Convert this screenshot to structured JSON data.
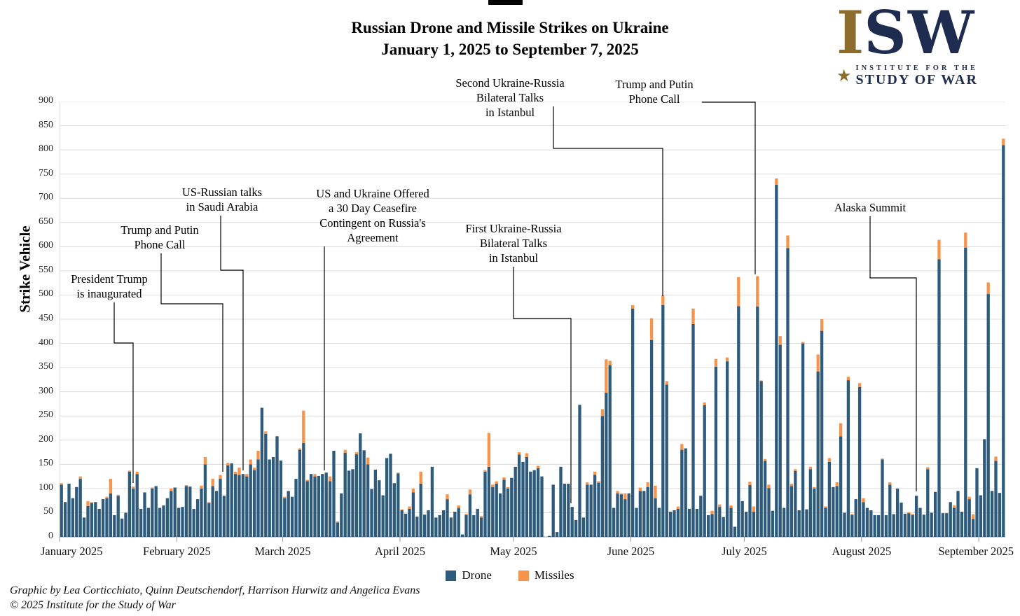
{
  "title": {
    "line1": "Russian Drone and Missile Strikes on Ukraine",
    "line2": "January 1, 2025 to September 7, 2025"
  },
  "logo": {
    "i": "I",
    "sw": "SW",
    "star": "★",
    "line1": "INSTITUTE FOR THE",
    "line2": "STUDY OF WAR"
  },
  "y_axis": {
    "title": "Strike Vehicle"
  },
  "x_axis": {
    "months": [
      "January 2025",
      "February 2025",
      "March 2025",
      "April 2025",
      "May 2025",
      "June 2025",
      "July 2025",
      "August 2025",
      "September 2025"
    ]
  },
  "legend": [
    {
      "label": "Drone",
      "color": "#2E5B7C"
    },
    {
      "label": "Missiles",
      "color": "#F6944C"
    }
  ],
  "annotations": [
    {
      "text": "President Trump\nis inaugurated"
    },
    {
      "text": "Trump and Putin\nPhone Call"
    },
    {
      "text": "US-Russian talks\nin Saudi Arabia"
    },
    {
      "text": "US and Ukraine Offered\na 30 Day Ceasefire\nContingent on Russia's\nAgreement"
    },
    {
      "text": "First Ukraine-Russia\nBilateral Talks\nin Istanbul"
    },
    {
      "text": "Second Ukraine-Russia\nBilateral Talks\nin Istanbul"
    },
    {
      "text": "Trump and Putin\nPhone Call"
    },
    {
      "text": "Alaska Summit"
    }
  ],
  "credits": {
    "line1": "Graphic by Lea Corticchiato, Quinn Deutschendorf, Harrison Hurwitz and Angelica Evans",
    "line2": "© 2025 Institute for the Study of War"
  },
  "chart_data": {
    "type": "bar",
    "stacked": true,
    "title": "Russian Drone and Missile Strikes on Ukraine, January 1, 2025 to September 7, 2025",
    "xlabel": "",
    "ylabel": "Strike Vehicle",
    "ylim": [
      0,
      900
    ],
    "y_tick_step": 50,
    "grid": "horizontal",
    "legend_position": "bottom",
    "x_start_date": "2025-01-01",
    "x_end_date": "2025-09-07",
    "month_starts": [
      0,
      31,
      59,
      90,
      120,
      151,
      181,
      212,
      243
    ],
    "series": [
      {
        "name": "Drone",
        "color": "#2E5B7C",
        "values": [
          108,
          72,
          110,
          80,
          103,
          120,
          40,
          64,
          70,
          72,
          58,
          78,
          80,
          90,
          45,
          85,
          38,
          50,
          135,
          100,
          130,
          58,
          92,
          60,
          100,
          105,
          60,
          65,
          80,
          95,
          102,
          60,
          62,
          105,
          104,
          58,
          78,
          100,
          150,
          70,
          105,
          95,
          120,
          85,
          148,
          152,
          130,
          128,
          130,
          125,
          150,
          138,
          160,
          267,
          213,
          160,
          165,
          208,
          158,
          80,
          95,
          83,
          120,
          180,
          194,
          115,
          130,
          125,
          126,
          130,
          133,
          115,
          178,
          30,
          90,
          174,
          137,
          140,
          171,
          214,
          179,
          150,
          99,
          139,
          117,
          86,
          163,
          172,
          111,
          131,
          55,
          48,
          58,
          92,
          42,
          110,
          46,
          55,
          145,
          40,
          45,
          55,
          78,
          40,
          52,
          60,
          5,
          45,
          88,
          45,
          58,
          40,
          135,
          145,
          103,
          110,
          90,
          118,
          100,
          122,
          145,
          170,
          155,
          165,
          135,
          138,
          142,
          125,
          0,
          2,
          108,
          10,
          145,
          110,
          110,
          62,
          35,
          273,
          40,
          108,
          108,
          128,
          112,
          250,
          298,
          355,
          60,
          90,
          88,
          78,
          90,
          472,
          60,
          95,
          95,
          103,
          407,
          80,
          60,
          479,
          315,
          52,
          55,
          58,
          180,
          183,
          58,
          440,
          58,
          85,
          272,
          45,
          47,
          352,
          62,
          41,
          363,
          60,
          21,
          477,
          74,
          52,
          107,
          52,
          476,
          322,
          157,
          101,
          54,
          728,
          397,
          60,
          597,
          105,
          136,
          55,
          400,
          57,
          140,
          100,
          342,
          426,
          60,
          155,
          103,
          105,
          208,
          50,
          324,
          45,
          78,
          310,
          72,
          60,
          55,
          45,
          45,
          160,
          45,
          108,
          47,
          100,
          71,
          48,
          49,
          45,
          85,
          60,
          46,
          140,
          50,
          93,
          574,
          49,
          49,
          72,
          60,
          95,
          52,
          598,
          78,
          37,
          142,
          86,
          202,
          502,
          95,
          157,
          91,
          810
        ]
      },
      {
        "name": "Missiles",
        "color": "#F6944C",
        "values": [
          3,
          0,
          0,
          0,
          0,
          5,
          0,
          10,
          2,
          0,
          0,
          0,
          3,
          30,
          0,
          2,
          0,
          0,
          2,
          4,
          5,
          0,
          0,
          0,
          2,
          0,
          0,
          0,
          0,
          5,
          0,
          0,
          0,
          2,
          0,
          0,
          0,
          6,
          15,
          2,
          15,
          0,
          8,
          0,
          5,
          0,
          5,
          15,
          0,
          5,
          10,
          5,
          18,
          0,
          5,
          0,
          0,
          0,
          0,
          3,
          0,
          0,
          0,
          3,
          67,
          3,
          0,
          5,
          0,
          0,
          0,
          10,
          0,
          2,
          0,
          6,
          0,
          0,
          4,
          0,
          0,
          14,
          0,
          0,
          0,
          0,
          0,
          0,
          0,
          2,
          2,
          0,
          5,
          8,
          0,
          25,
          0,
          0,
          0,
          0,
          0,
          0,
          10,
          0,
          0,
          5,
          0,
          3,
          10,
          0,
          0,
          3,
          3,
          70,
          5,
          5,
          0,
          5,
          3,
          0,
          0,
          5,
          0,
          8,
          0,
          0,
          5,
          0,
          0,
          0,
          0,
          0,
          0,
          0,
          0,
          0,
          0,
          0,
          0,
          5,
          0,
          7,
          3,
          14,
          69,
          9,
          0,
          5,
          2,
          12,
          0,
          7,
          0,
          7,
          0,
          10,
          45,
          26,
          0,
          20,
          7,
          0,
          0,
          5,
          12,
          0,
          0,
          32,
          0,
          0,
          6,
          0,
          7,
          16,
          5,
          0,
          8,
          5,
          0,
          60,
          0,
          0,
          7,
          11,
          63,
          1,
          4,
          7,
          0,
          13,
          18,
          0,
          26,
          5,
          4,
          0,
          3,
          0,
          5,
          3,
          35,
          24,
          3,
          8,
          0,
          8,
          27,
          0,
          7,
          3,
          0,
          8,
          8,
          0,
          0,
          0,
          0,
          2,
          0,
          5,
          0,
          0,
          0,
          0,
          2,
          3,
          0,
          0,
          0,
          4,
          0,
          0,
          40,
          0,
          0,
          0,
          5,
          0,
          0,
          31,
          5,
          10,
          0,
          0,
          0,
          24,
          0,
          9,
          0,
          13
        ]
      }
    ]
  }
}
